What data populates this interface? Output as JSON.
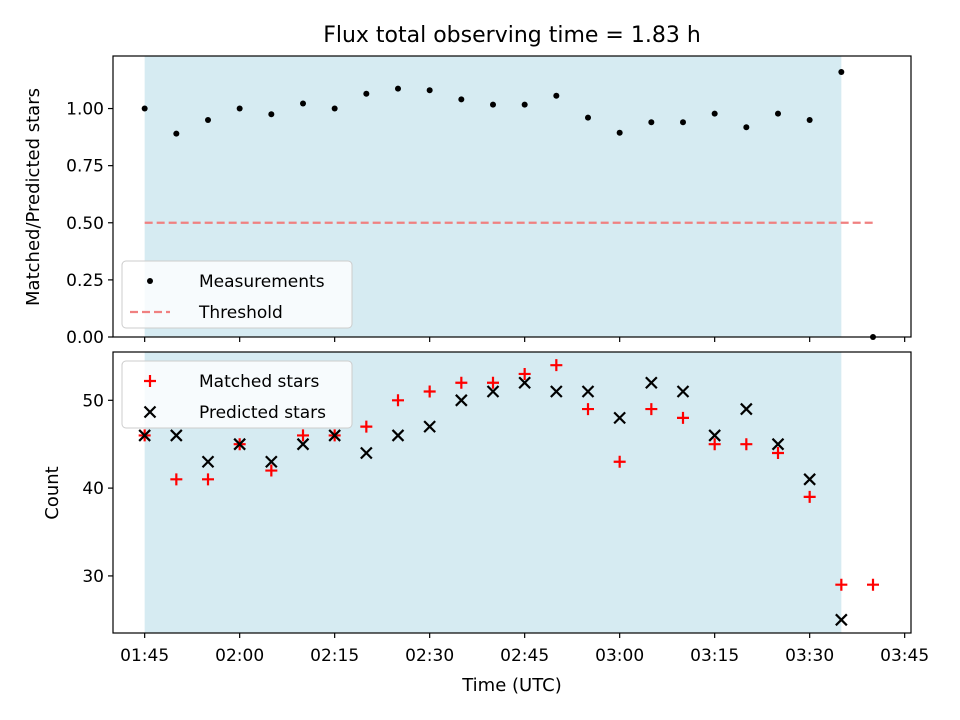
{
  "colors": {
    "span": "#add8e6",
    "measurement": "#000000",
    "threshold": "#f08080",
    "matched": "#ff0000",
    "predicted": "#000000"
  },
  "chart_data": [
    {
      "type": "scatter",
      "title": "Flux total observing time = 1.83 h",
      "xlabel": "",
      "ylabel": "Matched/Predicted stars",
      "xlim": [
        "01:40",
        "03:46"
      ],
      "ylim": [
        0,
        1.23
      ],
      "y_ticks": [
        0.0,
        0.25,
        0.5,
        0.75,
        1.0
      ],
      "y_tick_labels": [
        "0.00",
        "0.25",
        "0.50",
        "0.75",
        "1.00"
      ],
      "x_ticks": [
        "01:45",
        "02:00",
        "02:15",
        "02:30",
        "02:45",
        "03:00",
        "03:15",
        "03:30",
        "03:45"
      ],
      "x_tick_labels_visible": false,
      "shaded_span": [
        "01:45",
        "03:35"
      ],
      "legend_position": "lower left",
      "series": [
        {
          "name": "Measurements",
          "marker": "dot",
          "x": [
            "01:45",
            "01:50",
            "01:55",
            "02:00",
            "02:05",
            "02:10",
            "02:15",
            "02:20",
            "02:25",
            "02:30",
            "02:35",
            "02:40",
            "02:45",
            "02:50",
            "02:55",
            "03:00",
            "03:05",
            "03:10",
            "03:15",
            "03:20",
            "03:25",
            "03:30",
            "03:35",
            "03:40"
          ],
          "values": [
            1.0,
            0.89,
            0.95,
            1.0,
            0.975,
            1.022,
            1.0,
            1.065,
            1.087,
            1.08,
            1.04,
            1.017,
            1.017,
            1.056,
            0.96,
            0.894,
            0.94,
            0.94,
            0.978,
            0.918,
            0.978,
            0.95,
            1.16,
            0.0
          ]
        },
        {
          "name": "Threshold",
          "marker": "dashed-line",
          "x": [
            "01:45",
            "03:40"
          ],
          "values": [
            0.5,
            0.5
          ]
        }
      ]
    },
    {
      "type": "scatter",
      "title": "",
      "xlabel": "Time (UTC)",
      "ylabel": "Count",
      "xlim": [
        "01:40",
        "03:46"
      ],
      "ylim": [
        23.5,
        55.5
      ],
      "y_ticks": [
        30,
        40,
        50
      ],
      "y_tick_labels": [
        "30",
        "40",
        "50"
      ],
      "x_ticks": [
        "01:45",
        "02:00",
        "02:15",
        "02:30",
        "02:45",
        "03:00",
        "03:15",
        "03:30",
        "03:45"
      ],
      "x_tick_labels": [
        "01:45",
        "02:00",
        "02:15",
        "02:30",
        "02:45",
        "03:00",
        "03:15",
        "03:30",
        "03:45"
      ],
      "shaded_span": [
        "01:45",
        "03:35"
      ],
      "legend_position": "upper left",
      "series": [
        {
          "name": "Matched stars",
          "marker": "plus",
          "x": [
            "01:45",
            "01:50",
            "01:55",
            "02:00",
            "02:05",
            "02:10",
            "02:15",
            "02:20",
            "02:25",
            "02:30",
            "02:35",
            "02:40",
            "02:45",
            "02:50",
            "02:55",
            "03:00",
            "03:05",
            "03:10",
            "03:15",
            "03:20",
            "03:25",
            "03:30",
            "03:35",
            "03:40"
          ],
          "values": [
            46,
            41,
            41,
            45,
            42,
            46,
            46,
            47,
            50,
            51,
            52,
            52,
            53,
            54,
            49,
            43,
            49,
            48,
            45,
            45,
            44,
            39,
            29,
            29
          ]
        },
        {
          "name": "Predicted stars",
          "marker": "x",
          "x": [
            "01:45",
            "01:50",
            "01:55",
            "02:00",
            "02:05",
            "02:10",
            "02:15",
            "02:20",
            "02:25",
            "02:30",
            "02:35",
            "02:40",
            "02:45",
            "02:50",
            "02:55",
            "03:00",
            "03:05",
            "03:10",
            "03:15",
            "03:20",
            "03:25",
            "03:30",
            "03:35"
          ],
          "values": [
            46,
            46,
            43,
            45,
            43,
            45,
            46,
            44,
            46,
            47,
            50,
            51,
            52,
            51,
            51,
            48,
            52,
            51,
            46,
            49,
            45,
            41,
            25
          ]
        }
      ]
    }
  ]
}
